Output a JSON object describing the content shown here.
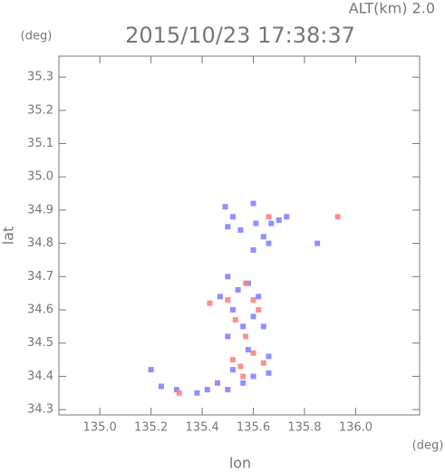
{
  "chart_data": {
    "type": "scatter",
    "title": "2015/10/23 17:38:37",
    "subtitle": "ALT(km) 2.0",
    "y_unit": "(deg)",
    "x_unit": "(deg)",
    "x_label": "lon",
    "y_label": "lat",
    "xlim": [
      134.84,
      136.25
    ],
    "ylim": [
      34.284,
      35.363
    ],
    "xticks": [
      {
        "value": 135,
        "label": "135.0"
      },
      135.2,
      135.4,
      135.6,
      135.8,
      {
        "value": 136,
        "label": "136.0"
      }
    ],
    "yticks": [
      34.3,
      34.4,
      34.5,
      34.6,
      34.7,
      34.8,
      34.9,
      {
        "value": 35,
        "label": "35.0"
      },
      35.1,
      35.2,
      35.3
    ],
    "grid": false,
    "series": [
      {
        "color": "#7b7bff",
        "x": [
          135.49,
          135.52,
          135.5,
          135.55,
          135.6,
          135.61,
          135.64,
          135.67,
          135.7,
          135.73,
          135.6,
          135.66,
          135.85,
          135.5,
          135.54,
          135.58,
          135.62,
          135.52,
          135.47,
          135.6,
          135.56,
          135.64,
          135.5,
          135.58,
          135.66,
          135.52,
          135.6,
          135.66,
          135.2,
          135.24,
          135.3,
          135.38,
          135.42,
          135.46,
          135.5,
          135.56
        ],
        "values": [
          34.91,
          34.88,
          34.85,
          34.84,
          34.92,
          34.86,
          34.82,
          34.86,
          34.87,
          34.88,
          34.78,
          34.8,
          34.8,
          34.7,
          34.66,
          34.68,
          34.64,
          34.6,
          34.64,
          34.58,
          34.55,
          34.55,
          34.52,
          34.48,
          34.46,
          34.42,
          34.4,
          34.41,
          34.42,
          34.37,
          34.36,
          34.35,
          34.36,
          34.38,
          34.36,
          34.38
        ]
      },
      {
        "color": "#ff7b7b",
        "x": [
          135.93,
          135.57,
          135.6,
          135.53,
          135.57,
          135.6,
          135.64,
          135.55,
          135.52,
          135.5,
          135.62,
          135.56,
          135.66,
          135.43,
          135.31
        ],
        "values": [
          34.88,
          34.68,
          34.63,
          34.57,
          34.52,
          34.47,
          34.44,
          34.43,
          34.45,
          34.63,
          34.6,
          34.4,
          34.88,
          34.62,
          34.35
        ]
      }
    ]
  }
}
